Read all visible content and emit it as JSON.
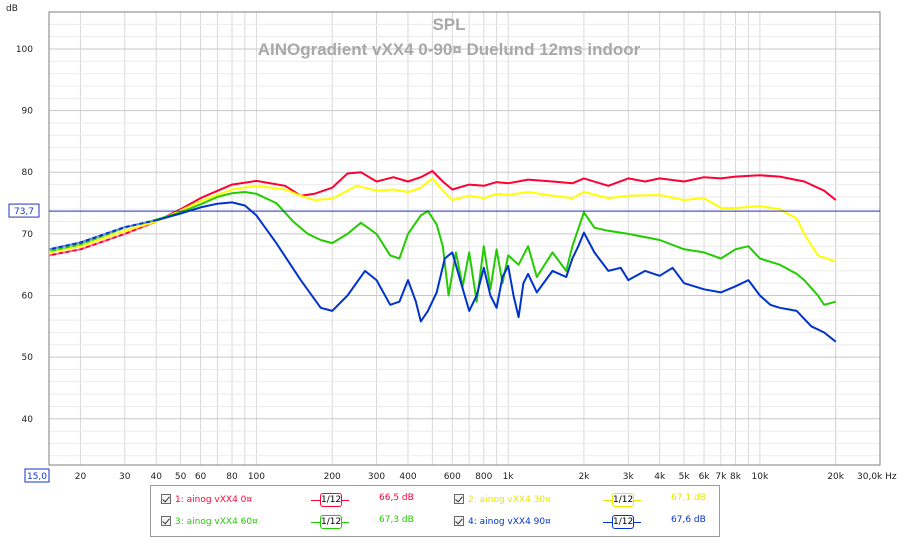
{
  "chart_data": {
    "type": "line",
    "title": "SPL",
    "subtitle": "AINOgradient vXX4 0-90¤ Duelund 12ms indoor",
    "ylabel": "dB",
    "xunit": "Hz",
    "xscale": "log",
    "xlim": [
      15,
      30000
    ],
    "ylim": [
      32.5,
      106
    ],
    "grid": true,
    "y_ticks": [
      "40",
      "50",
      "60",
      "70",
      "80",
      "90",
      "100"
    ],
    "x_ticks": [
      {
        "v": 20,
        "t": "20"
      },
      {
        "v": 30,
        "t": "30"
      },
      {
        "v": 40,
        "t": "40"
      },
      {
        "v": 50,
        "t": "50"
      },
      {
        "v": 60,
        "t": "60"
      },
      {
        "v": 80,
        "t": "80"
      },
      {
        "v": 100,
        "t": "100"
      },
      {
        "v": 200,
        "t": "200"
      },
      {
        "v": 300,
        "t": "300"
      },
      {
        "v": 400,
        "t": "400"
      },
      {
        "v": 600,
        "t": "600"
      },
      {
        "v": 800,
        "t": "800"
      },
      {
        "v": 1000,
        "t": "1k"
      },
      {
        "v": 2000,
        "t": "2k"
      },
      {
        "v": 3000,
        "t": "3k"
      },
      {
        "v": 4000,
        "t": "4k"
      },
      {
        "v": 5000,
        "t": "5k"
      },
      {
        "v": 6000,
        "t": "6k"
      },
      {
        "v": 7000,
        "t": "7k"
      },
      {
        "v": 8000,
        "t": "8k"
      },
      {
        "v": 10000,
        "t": "10k"
      },
      {
        "v": 20000,
        "t": "20k"
      },
      {
        "v": 30000,
        "t": "30,0k Hz"
      }
    ],
    "x_start_label": "15,0",
    "cursor": {
      "value": 73.7,
      "label": "73,7"
    },
    "series": [
      {
        "name": "1: ainog vXX4 0¤",
        "color": "#ff0033",
        "dash_low_end": true,
        "points": [
          [
            15,
            66.5
          ],
          [
            20,
            67.5
          ],
          [
            30,
            70
          ],
          [
            40,
            72
          ],
          [
            50,
            74
          ],
          [
            60,
            75.8
          ],
          [
            80,
            78
          ],
          [
            100,
            78.6
          ],
          [
            130,
            77.8
          ],
          [
            150,
            76.2
          ],
          [
            170,
            76.5
          ],
          [
            200,
            77.5
          ],
          [
            230,
            79.8
          ],
          [
            260,
            80
          ],
          [
            300,
            78.5
          ],
          [
            350,
            79.2
          ],
          [
            400,
            78.5
          ],
          [
            450,
            79.2
          ],
          [
            500,
            80.2
          ],
          [
            550,
            78.5
          ],
          [
            600,
            77.2
          ],
          [
            700,
            78
          ],
          [
            800,
            77.8
          ],
          [
            900,
            78.4
          ],
          [
            1000,
            78.2
          ],
          [
            1200,
            78.8
          ],
          [
            1500,
            78.5
          ],
          [
            1800,
            78.2
          ],
          [
            2000,
            79
          ],
          [
            2500,
            77.8
          ],
          [
            3000,
            79
          ],
          [
            3500,
            78.5
          ],
          [
            4000,
            79
          ],
          [
            5000,
            78.5
          ],
          [
            6000,
            79.2
          ],
          [
            7000,
            79
          ],
          [
            8000,
            79.3
          ],
          [
            10000,
            79.5
          ],
          [
            12000,
            79.3
          ],
          [
            15000,
            78.5
          ],
          [
            18000,
            77
          ],
          [
            20000,
            75.5
          ]
        ]
      },
      {
        "name": "2: ainog vXX4 30¤",
        "color": "#ffff00",
        "dash_low_end": false,
        "points": [
          [
            15,
            67
          ],
          [
            20,
            68
          ],
          [
            30,
            70.5
          ],
          [
            40,
            72
          ],
          [
            50,
            73.8
          ],
          [
            60,
            75.3
          ],
          [
            80,
            77.2
          ],
          [
            100,
            77.8
          ],
          [
            130,
            77.2
          ],
          [
            150,
            76.2
          ],
          [
            170,
            75.5
          ],
          [
            200,
            75.7
          ],
          [
            250,
            77.8
          ],
          [
            300,
            77
          ],
          [
            350,
            77.2
          ],
          [
            400,
            76.8
          ],
          [
            450,
            77.5
          ],
          [
            500,
            79
          ],
          [
            550,
            77
          ],
          [
            600,
            75.5
          ],
          [
            700,
            76.2
          ],
          [
            800,
            75.8
          ],
          [
            900,
            76.5
          ],
          [
            1000,
            76.3
          ],
          [
            1200,
            76.8
          ],
          [
            1500,
            76.2
          ],
          [
            1800,
            75.8
          ],
          [
            2000,
            76.8
          ],
          [
            2500,
            75.8
          ],
          [
            3000,
            76.2
          ],
          [
            4000,
            76.3
          ],
          [
            5000,
            75.5
          ],
          [
            6000,
            75.8
          ],
          [
            7000,
            74.2
          ],
          [
            8000,
            74.2
          ],
          [
            10000,
            74.5
          ],
          [
            12000,
            74
          ],
          [
            14000,
            72.5
          ],
          [
            15000,
            70
          ],
          [
            17000,
            66.5
          ],
          [
            20000,
            65.5
          ]
        ]
      },
      {
        "name": "3: ainog vXX4 60¤",
        "color": "#22cc00",
        "dash_low_end": true,
        "points": [
          [
            15,
            67.2
          ],
          [
            20,
            68.3
          ],
          [
            30,
            71
          ],
          [
            40,
            72.3
          ],
          [
            50,
            73.5
          ],
          [
            60,
            74.8
          ],
          [
            70,
            76
          ],
          [
            80,
            76.6
          ],
          [
            90,
            76.8
          ],
          [
            100,
            76.5
          ],
          [
            120,
            75
          ],
          [
            140,
            72
          ],
          [
            160,
            70
          ],
          [
            180,
            69
          ],
          [
            200,
            68.5
          ],
          [
            230,
            70
          ],
          [
            260,
            71.8
          ],
          [
            300,
            70
          ],
          [
            340,
            66.5
          ],
          [
            370,
            66
          ],
          [
            400,
            70
          ],
          [
            450,
            73
          ],
          [
            480,
            73.7
          ],
          [
            520,
            71.5
          ],
          [
            550,
            68
          ],
          [
            580,
            60
          ],
          [
            620,
            67
          ],
          [
            660,
            61.5
          ],
          [
            700,
            67
          ],
          [
            750,
            59
          ],
          [
            800,
            68
          ],
          [
            850,
            61
          ],
          [
            900,
            67.5
          ],
          [
            950,
            62
          ],
          [
            1000,
            66.5
          ],
          [
            1100,
            65
          ],
          [
            1200,
            68
          ],
          [
            1300,
            63
          ],
          [
            1500,
            67
          ],
          [
            1700,
            64
          ],
          [
            1800,
            68
          ],
          [
            2000,
            73.5
          ],
          [
            2200,
            71
          ],
          [
            2500,
            70.5
          ],
          [
            3000,
            70
          ],
          [
            4000,
            69
          ],
          [
            5000,
            67.5
          ],
          [
            6000,
            67
          ],
          [
            7000,
            66
          ],
          [
            8000,
            67.5
          ],
          [
            9000,
            68
          ],
          [
            10000,
            66
          ],
          [
            12000,
            65
          ],
          [
            14000,
            63.5
          ],
          [
            15000,
            62.5
          ],
          [
            17000,
            60
          ],
          [
            18000,
            58.5
          ],
          [
            20000,
            59
          ]
        ]
      },
      {
        "name": "4: ainog vXX4 90¤",
        "color": "#0033cc",
        "dash_low_end": true,
        "points": [
          [
            15,
            67.5
          ],
          [
            20,
            68.6
          ],
          [
            30,
            71.1
          ],
          [
            40,
            72.2
          ],
          [
            50,
            73.3
          ],
          [
            60,
            74.3
          ],
          [
            70,
            74.9
          ],
          [
            80,
            75.1
          ],
          [
            90,
            74.6
          ],
          [
            100,
            73
          ],
          [
            120,
            68.5
          ],
          [
            150,
            62.5
          ],
          [
            180,
            58
          ],
          [
            200,
            57.5
          ],
          [
            230,
            60
          ],
          [
            270,
            64
          ],
          [
            300,
            62.5
          ],
          [
            340,
            58.5
          ],
          [
            370,
            59
          ],
          [
            400,
            62.5
          ],
          [
            430,
            59
          ],
          [
            450,
            55.8
          ],
          [
            480,
            57.5
          ],
          [
            520,
            60.5
          ],
          [
            560,
            66
          ],
          [
            600,
            67
          ],
          [
            650,
            62
          ],
          [
            700,
            57.5
          ],
          [
            750,
            60
          ],
          [
            800,
            64.5
          ],
          [
            850,
            60
          ],
          [
            900,
            58
          ],
          [
            950,
            63
          ],
          [
            1000,
            64.8
          ],
          [
            1050,
            60
          ],
          [
            1100,
            56.5
          ],
          [
            1150,
            62
          ],
          [
            1200,
            63.5
          ],
          [
            1300,
            60.5
          ],
          [
            1500,
            64
          ],
          [
            1700,
            63
          ],
          [
            1800,
            66
          ],
          [
            1900,
            68
          ],
          [
            2000,
            70.2
          ],
          [
            2200,
            67
          ],
          [
            2500,
            64
          ],
          [
            2800,
            64.5
          ],
          [
            3000,
            62.5
          ],
          [
            3500,
            64
          ],
          [
            4000,
            63.2
          ],
          [
            4500,
            64.5
          ],
          [
            5000,
            62
          ],
          [
            6000,
            61
          ],
          [
            7000,
            60.5
          ],
          [
            8000,
            61.5
          ],
          [
            9000,
            62.5
          ],
          [
            10000,
            60
          ],
          [
            11000,
            58.5
          ],
          [
            12000,
            58
          ],
          [
            14000,
            57.5
          ],
          [
            16000,
            55
          ],
          [
            18000,
            54
          ],
          [
            20000,
            52.5
          ]
        ]
      }
    ]
  },
  "legend": [
    {
      "label": "1: ainog vXX4 0¤",
      "smoothing": "1/12",
      "value": "66,5 dB",
      "color": "#ff0033"
    },
    {
      "label": "2: ainog vXX4 30¤",
      "smoothing": "1/12",
      "value": "67,1 dB",
      "color": "#e8e800"
    },
    {
      "label": "3: ainog vXX4 60¤",
      "smoothing": "1/12",
      "value": "67,3 dB",
      "color": "#22cc00"
    },
    {
      "label": "4: ainog vXX4 90¤",
      "smoothing": "1/12",
      "value": "67,6 dB",
      "color": "#0033cc"
    }
  ]
}
